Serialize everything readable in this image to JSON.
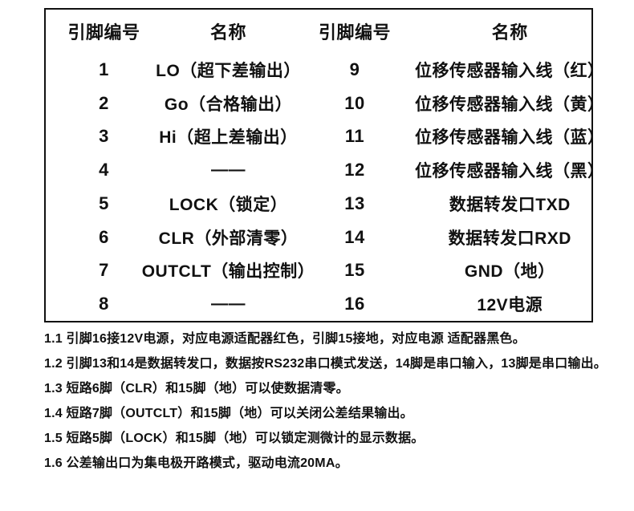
{
  "table": {
    "headers": {
      "pin_left": "引脚编号",
      "name_left": "名称",
      "pin_right": "引脚编号",
      "name_right": "名称"
    },
    "rows": [
      {
        "pin_left": "1",
        "name_left": "LO（超下差输出）",
        "pin_right": "9",
        "name_right": "位移传感器输入线（红）"
      },
      {
        "pin_left": "2",
        "name_left": "Go（合格输出）",
        "pin_right": "10",
        "name_right": "位移传感器输入线（黄）"
      },
      {
        "pin_left": "3",
        "name_left": "Hi（超上差输出）",
        "pin_right": "11",
        "name_right": "位移传感器输入线（蓝）"
      },
      {
        "pin_left": "4",
        "name_left": "——",
        "pin_right": "12",
        "name_right": "位移传感器输入线（黑）"
      },
      {
        "pin_left": "5",
        "name_left": "LOCK（锁定）",
        "pin_right": "13",
        "name_right": "数据转发口TXD"
      },
      {
        "pin_left": "6",
        "name_left": "CLR（外部清零）",
        "pin_right": "14",
        "name_right": "数据转发口RXD"
      },
      {
        "pin_left": "7",
        "name_left": "OUTCLT（输出控制）",
        "pin_right": "15",
        "name_right": "GND（地）"
      },
      {
        "pin_left": "8",
        "name_left": "——",
        "pin_right": "16",
        "name_right": "12V电源"
      }
    ]
  },
  "notes": [
    "1.1 引脚16接12V电源，对应电源适配器红色，引脚15接地，对应电源 适配器黑色。",
    "1.2 引脚13和14是数据转发口，数据按RS232串口模式发送，14脚是串口输入，13脚是串口输出。",
    "1.3 短路6脚（CLR）和15脚（地）可以使数据清零。",
    "1.4 短路7脚（OUTCLT）和15脚（地）可以关闭公差结果输出。",
    "1.5 短路5脚（LOCK）和15脚（地）可以锁定测微计的显示数据。",
    "1.6 公差输出口为集电极开路模式，驱动电流20MA。"
  ]
}
